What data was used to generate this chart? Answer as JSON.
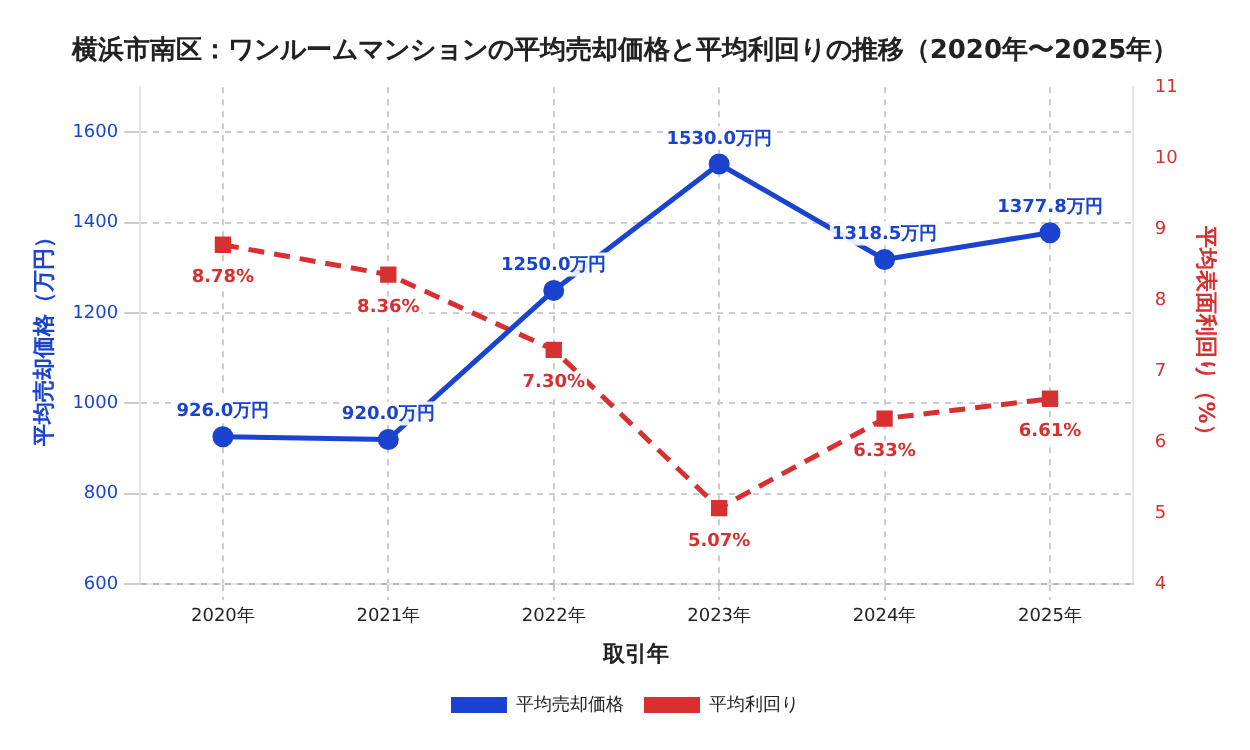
{
  "chart_data": {
    "type": "line",
    "title": "横浜市南区：ワンルームマンションの平均売却価格と平均利回りの推移（2020年〜2025年）",
    "xlabel": "取引年",
    "ylabel": "平均売却価格（万円）",
    "y2label": "平均表面利回り（%）",
    "categories": [
      "2020年",
      "2021年",
      "2022年",
      "2023年",
      "2024年",
      "2025年"
    ],
    "series": [
      {
        "name": "平均売却価格",
        "color": "#1a44d0",
        "values": [
          926.0,
          920.0,
          1250.0,
          1530.0,
          1318.5,
          1377.8
        ],
        "value_labels": [
          "926.0万円",
          "920.0万円",
          "1250.0万円",
          "1530.0万円",
          "1318.5万円",
          "1377.8万円"
        ],
        "marker": "circle",
        "line_style": "solid"
      },
      {
        "name": "平均利回り",
        "color": "#d63030",
        "axis": "y2",
        "values": [
          8.78,
          8.36,
          7.3,
          5.07,
          6.33,
          6.61
        ],
        "value_labels": [
          "8.78%",
          "8.36%",
          "7.30%",
          "5.07%",
          "6.33%",
          "6.61%"
        ],
        "marker": "square",
        "line_style": "dashed"
      }
    ],
    "ylim": [
      600,
      1700
    ],
    "yticks": [
      600,
      800,
      1000,
      1200,
      1400,
      1600
    ],
    "y2lim": [
      4,
      11
    ],
    "y2ticks": [
      4,
      5,
      6,
      7,
      8,
      9,
      10,
      11
    ],
    "grid": true,
    "legend": "bottom"
  }
}
